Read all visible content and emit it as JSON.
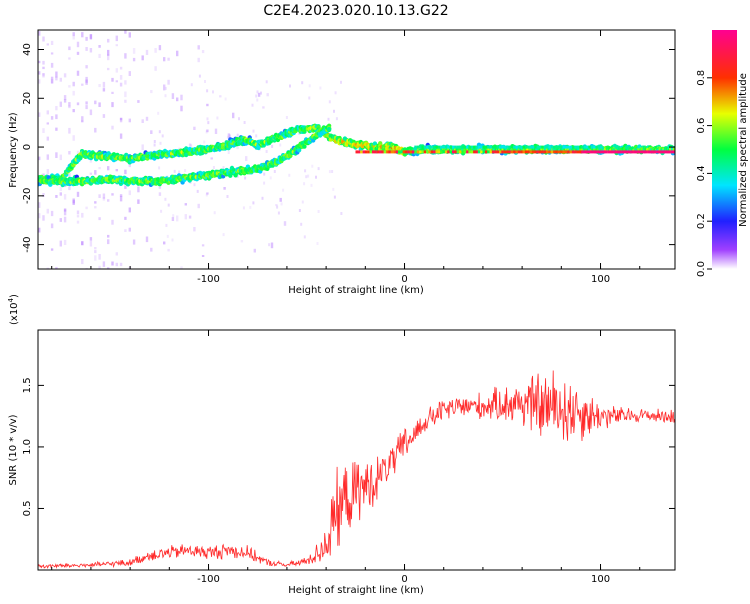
{
  "title": "C2E4.2023.020.10.13.G22",
  "chart_data": [
    {
      "type": "heatmap",
      "xlabel": "Height of straight line (km)",
      "ylabel": "Frequency (Hz)",
      "xlim": [
        -187,
        138
      ],
      "ylim": [
        -50,
        48
      ],
      "x_ticks": [
        -100,
        0,
        100
      ],
      "y_ticks": [
        40,
        20,
        0,
        -20,
        -40
      ],
      "colorbar": {
        "label": "Normalized spectral amplitude",
        "range": [
          0,
          1
        ],
        "ticks": [
          0.0,
          0.2,
          0.4,
          0.6,
          0.8
        ],
        "colors": [
          "#ffffff",
          "#8a2be2",
          "#0000ff",
          "#00e5ff",
          "#00ff00",
          "#ffff00",
          "#ff0000",
          "#ff00aa"
        ]
      },
      "traces": [
        {
          "name": "upper ridge",
          "points": [
            [
              -187,
              -13
            ],
            [
              -175,
              -13
            ],
            [
              -165,
              -3
            ],
            [
              -150,
              -4
            ],
            [
              -140,
              -5
            ],
            [
              -125,
              -3
            ],
            [
              -110,
              -2
            ],
            [
              -100,
              -1
            ],
            [
              -90,
              1
            ],
            [
              -82,
              3
            ],
            [
              -75,
              1
            ],
            [
              -65,
              4
            ],
            [
              -55,
              7
            ],
            [
              -45,
              8
            ],
            [
              -40,
              5
            ],
            [
              -35,
              3
            ],
            [
              -25,
              1
            ],
            [
              -15,
              0
            ],
            [
              -5,
              0
            ],
            [
              0,
              -2
            ],
            [
              10,
              -1
            ],
            [
              30,
              -1
            ],
            [
              60,
              -1
            ],
            [
              100,
              -1
            ],
            [
              138,
              -1
            ]
          ]
        },
        {
          "name": "lower ridge",
          "points": [
            [
              -187,
              -14
            ],
            [
              -160,
              -14
            ],
            [
              -150,
              -13
            ],
            [
              -140,
              -14
            ],
            [
              -125,
              -14
            ],
            [
              -75,
              -9
            ],
            [
              -65,
              -6
            ],
            [
              -55,
              -1
            ],
            [
              -48,
              3
            ],
            [
              -42,
              7
            ],
            [
              -38,
              8
            ]
          ]
        }
      ],
      "max_band": {
        "x_range": [
          -25,
          138
        ],
        "y": -2,
        "normalized_amplitude": 0.95
      }
    },
    {
      "type": "line",
      "xlabel": "Height of straight line (km)",
      "ylabel": "SNR (10 * v/v)",
      "y_multiplier": "(x10",
      "y_multiplier_exp": "4",
      "y_multiplier_close": ")",
      "xlim": [
        -187,
        138
      ],
      "ylim": [
        0,
        1.95
      ],
      "x_ticks": [
        -100,
        0,
        100
      ],
      "y_ticks": [
        0.5,
        1.0,
        1.5
      ],
      "y_tick_labels": [
        "0.5",
        "1.0",
        "1.5"
      ],
      "series": [
        {
          "color": "#ff2a2a",
          "envelope": {
            "x": [
              -187,
              -160,
              -140,
              -130,
              -120,
              -110,
              -100,
              -90,
              -80,
              -70,
              -60,
              -50,
              -45,
              -40,
              -35,
              -30,
              -25,
              -20,
              -15,
              -10,
              -5,
              0,
              5,
              10,
              20,
              30,
              40,
              50,
              60,
              70,
              80,
              90,
              100,
              110,
              120,
              130,
              138
            ],
            "mean": [
              0.03,
              0.04,
              0.06,
              0.12,
              0.14,
              0.16,
              0.14,
              0.16,
              0.14,
              0.06,
              0.04,
              0.07,
              0.13,
              0.22,
              0.45,
              0.58,
              0.62,
              0.68,
              0.72,
              0.82,
              0.9,
              1.02,
              1.1,
              1.2,
              1.3,
              1.33,
              1.33,
              1.35,
              1.36,
              1.33,
              1.32,
              1.28,
              1.25,
              1.25,
              1.26,
              1.25,
              1.25
            ],
            "spread": [
              0.02,
              0.02,
              0.03,
              0.05,
              0.06,
              0.06,
              0.06,
              0.07,
              0.06,
              0.03,
              0.02,
              0.04,
              0.08,
              0.22,
              0.35,
              0.3,
              0.28,
              0.25,
              0.2,
              0.15,
              0.15,
              0.15,
              0.12,
              0.1,
              0.1,
              0.1,
              0.12,
              0.15,
              0.22,
              0.3,
              0.35,
              0.25,
              0.12,
              0.08,
              0.06,
              0.06,
              0.06
            ]
          }
        }
      ]
    }
  ]
}
